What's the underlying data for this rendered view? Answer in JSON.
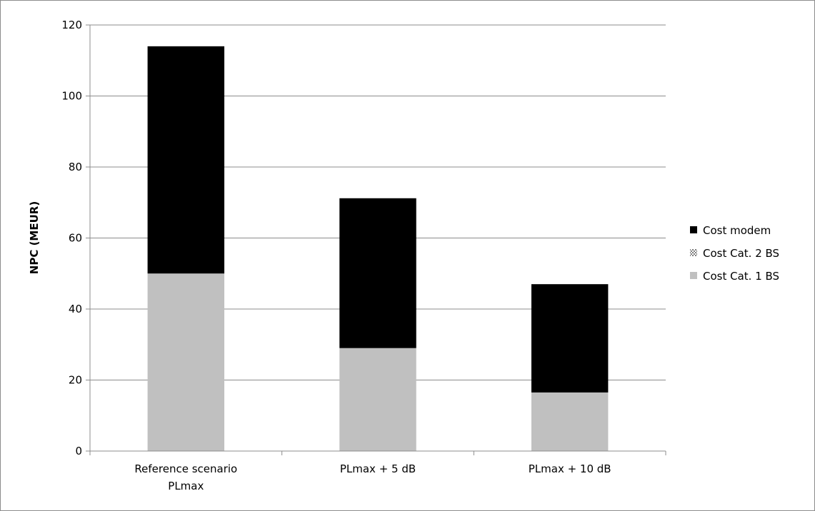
{
  "chart_data": {
    "type": "bar",
    "stacked": true,
    "title": "",
    "xlabel": "",
    "ylabel": "NPC (MEUR)",
    "ylim": [
      0,
      120
    ],
    "yticks": [
      0,
      20,
      40,
      60,
      80,
      100,
      120
    ],
    "grid": true,
    "legend_position": "right",
    "categories": [
      [
        "Reference scenario",
        "PLmax"
      ],
      [
        "PLmax + 5 dB"
      ],
      [
        "PLmax + 10 dB"
      ]
    ],
    "series": [
      {
        "name": "Cost Cat. 1 BS",
        "values": [
          50,
          29,
          16.5
        ],
        "color": "#c0c0c0",
        "pattern": "solid"
      },
      {
        "name": "Cost Cat. 2 BS",
        "values": [
          0,
          0,
          0
        ],
        "color": "#808080",
        "pattern": "checker"
      },
      {
        "name": "Cost modem",
        "values": [
          64,
          42.2,
          30.5
        ],
        "color": "#000000",
        "pattern": "solid"
      }
    ],
    "legend_order": [
      "Cost modem",
      "Cost Cat. 2 BS",
      "Cost Cat. 1 BS"
    ],
    "colors": {
      "grid": "#8c8c8c",
      "axis": "#8c8c8c",
      "frame": "#8c8c8c"
    }
  }
}
